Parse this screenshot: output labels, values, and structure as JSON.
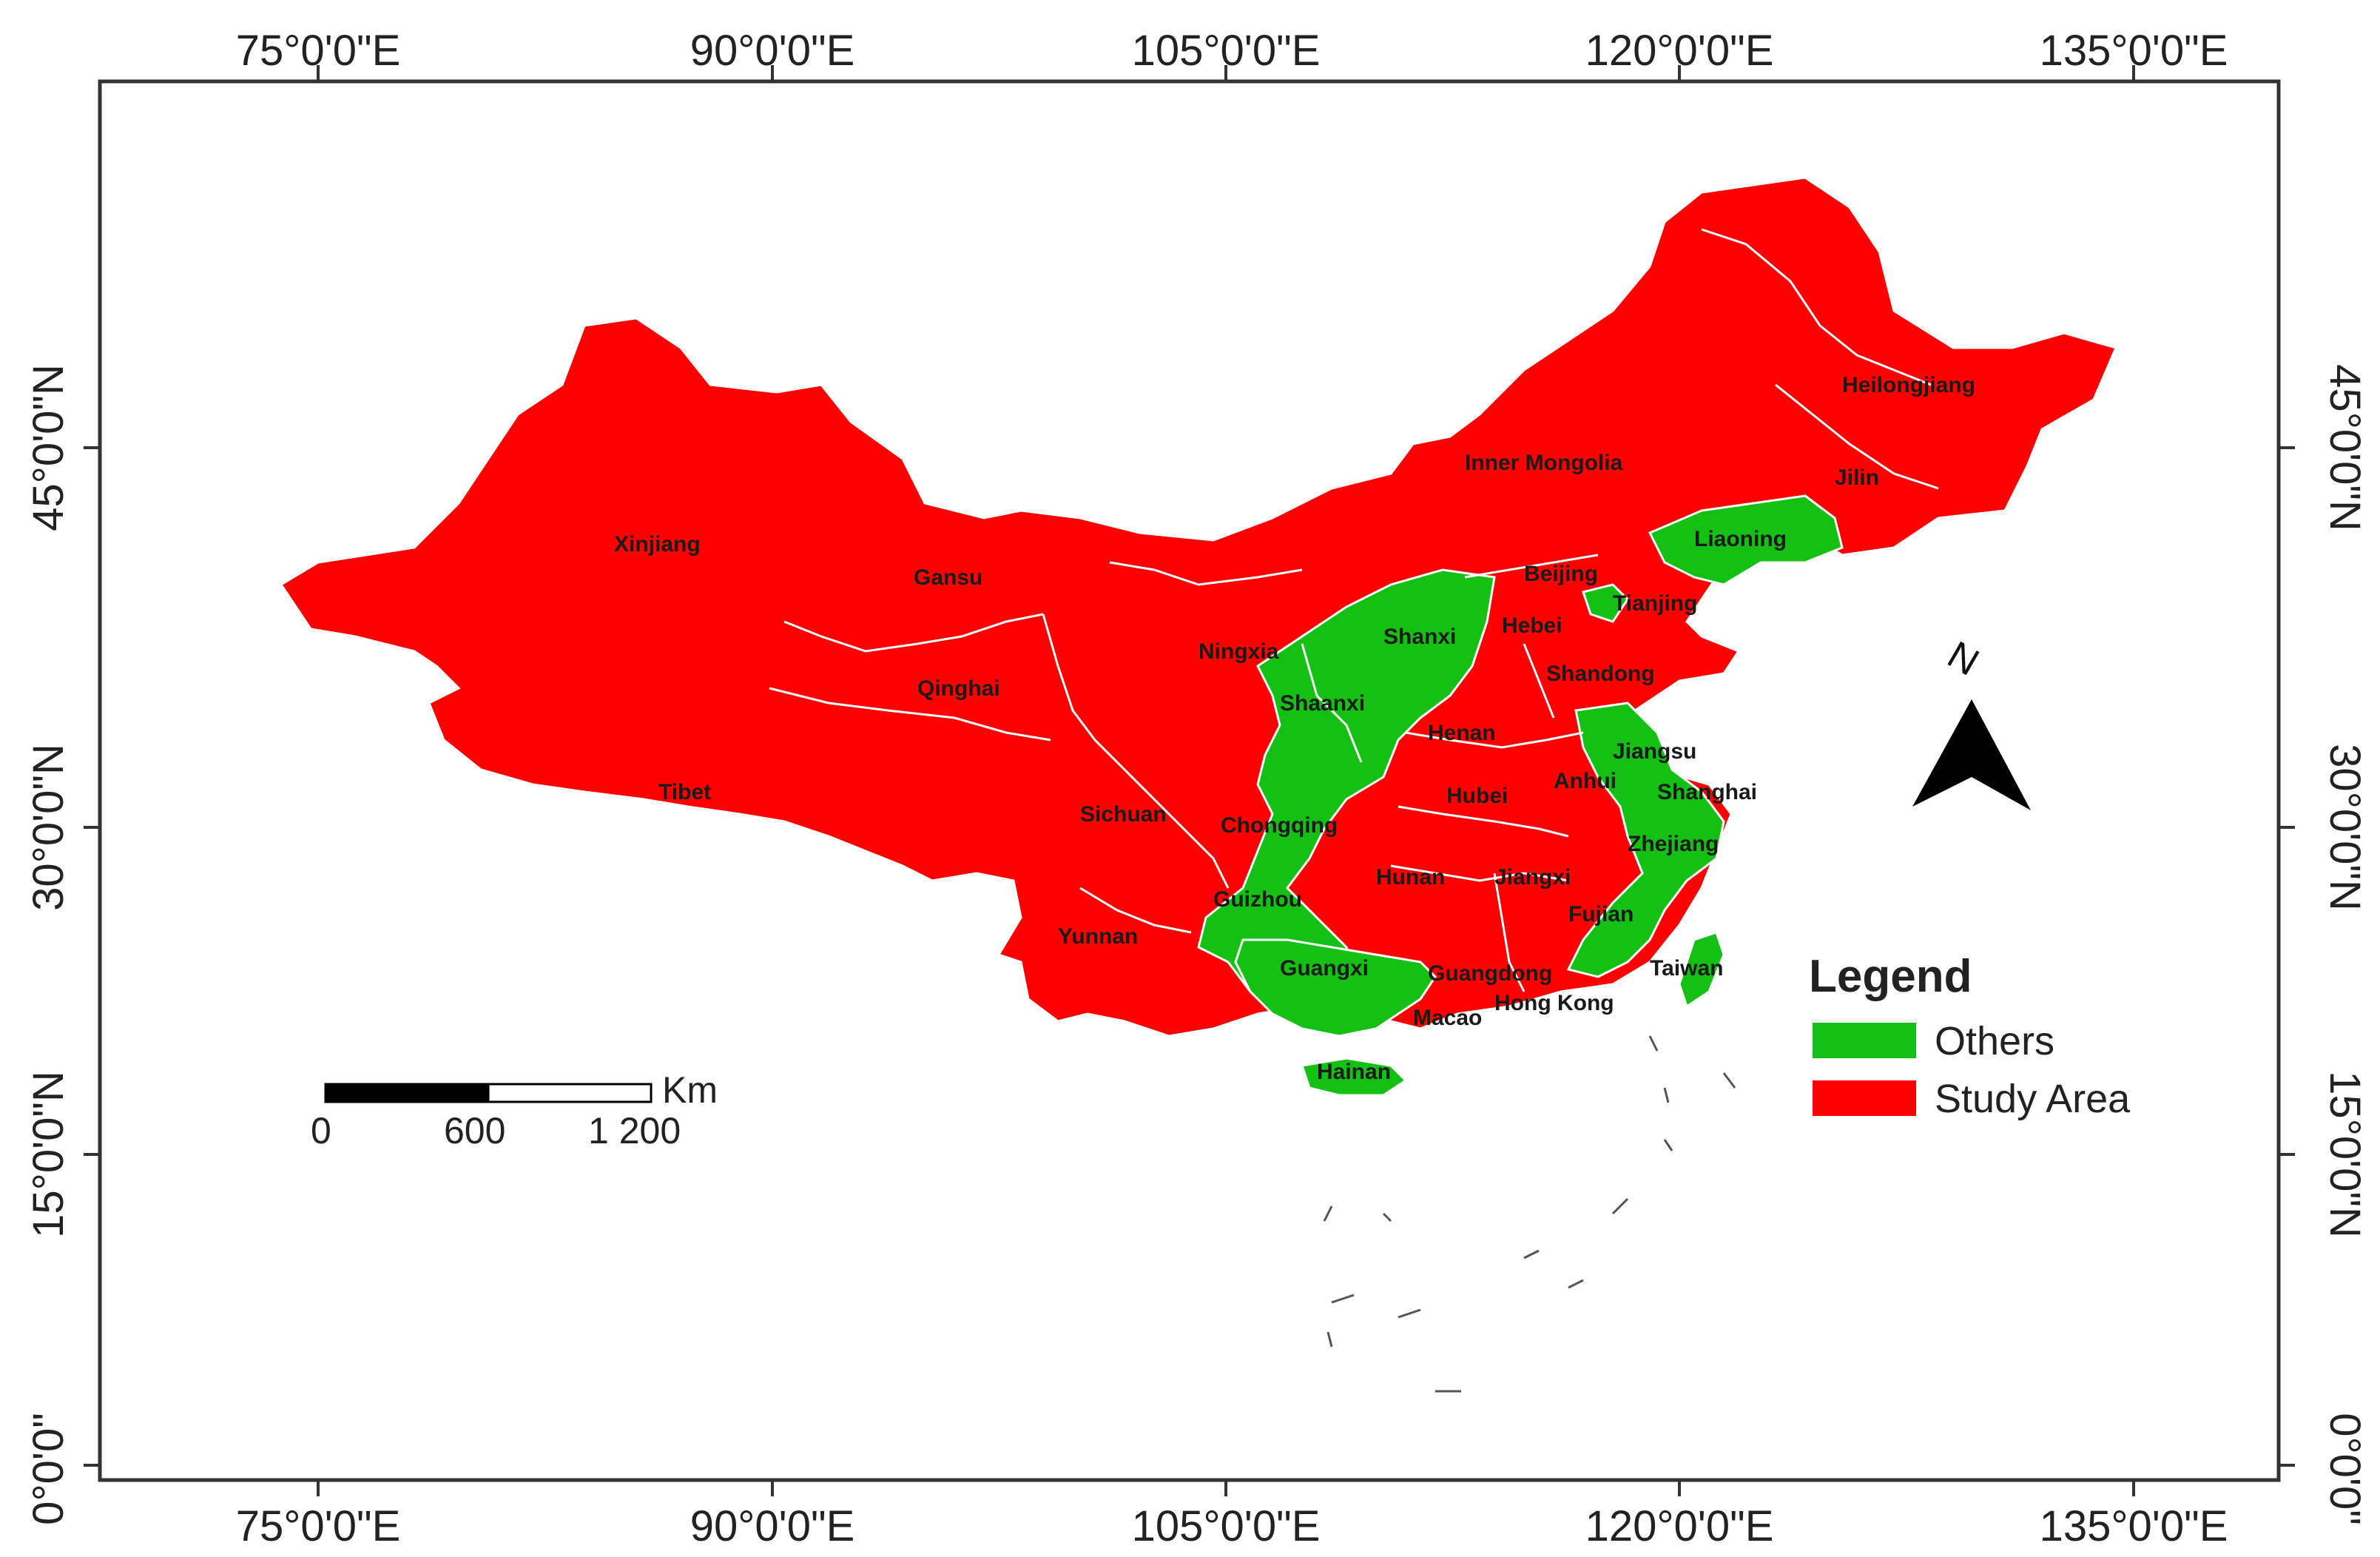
{
  "axes": {
    "longitude_labels": [
      "75°0'0\"E",
      "90°0'0\"E",
      "105°0'0\"E",
      "120°0'0\"E",
      "135°0'0\"E"
    ],
    "latitude_labels": [
      "45°0'0\"N",
      "30°0'0\"N",
      "15°0'0\"N",
      "0°0'0\""
    ]
  },
  "legend": {
    "title": "Legend",
    "items": [
      {
        "label": "Others",
        "color": "#13c013"
      },
      {
        "label": "Study Area",
        "color": "#ff0000"
      }
    ]
  },
  "scale_bar": {
    "unit": "Km",
    "ticks": [
      "0",
      "600",
      "1 200"
    ]
  },
  "north_arrow": {
    "label": "N"
  },
  "colors": {
    "study_area": "#ff0000",
    "others": "#13c013",
    "border": "#ffffff",
    "frame": "#333333"
  },
  "provinces": {
    "xinjiang": "Xinjiang",
    "tibet": "Tibet",
    "qinghai": "Qinghai",
    "gansu": "Gansu",
    "inner_mongolia": "Inner Mongolia",
    "heilongjiang": "Heilongjiang",
    "jilin": "Jilin",
    "liaoning": "Liaoning",
    "beijing": "Beijing",
    "tianjing": "Tianjing",
    "hebei": "Hebei",
    "shanxi": "Shanxi",
    "shandong": "Shandong",
    "ningxia": "Ningxia",
    "shaanxi": "Shaanxi",
    "henan": "Henan",
    "jiangsu": "Jiangsu",
    "anhui": "Anhui",
    "shanghai": "Shanghai",
    "hubei": "Hubei",
    "sichuan": "Sichuan",
    "chongqing": "Chongqing",
    "zhejiang": "Zhejiang",
    "hunan": "Hunan",
    "jiangxi": "Jiangxi",
    "guizhou": "Guizhou",
    "fujian": "Fujian",
    "yunnan": "Yunnan",
    "guangxi": "Guangxi",
    "guangdong": "Guangdong",
    "taiwan": "Taiwan",
    "hong_kong": "Hong Kong",
    "macao": "Macao",
    "hainan": "Hainan"
  }
}
